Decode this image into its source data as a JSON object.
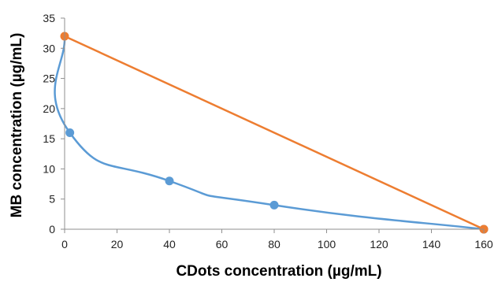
{
  "chart_data": {
    "type": "line",
    "title": "",
    "xlabel": "CDots concentration (µg/mL)",
    "ylabel": "MB concentration (µg/mL)",
    "xlim": [
      0,
      160
    ],
    "ylim": [
      0,
      35
    ],
    "xticks": [
      0,
      20,
      40,
      60,
      80,
      100,
      120,
      140,
      160
    ],
    "yticks": [
      0,
      5,
      10,
      15,
      20,
      25,
      30,
      35
    ],
    "grid": false,
    "legend": "none",
    "series": [
      {
        "color": "#5b9bd5",
        "smooth": true,
        "points": [
          {
            "x": 0,
            "y": 32
          },
          {
            "x": 2,
            "y": 16
          },
          {
            "x": 40,
            "y": 8
          },
          {
            "x": 80,
            "y": 4
          },
          {
            "x": 160,
            "y": 0
          }
        ]
      },
      {
        "color": "#ed7d31",
        "smooth": false,
        "points": [
          {
            "x": 0,
            "y": 32
          },
          {
            "x": 160,
            "y": 0
          }
        ]
      }
    ]
  }
}
